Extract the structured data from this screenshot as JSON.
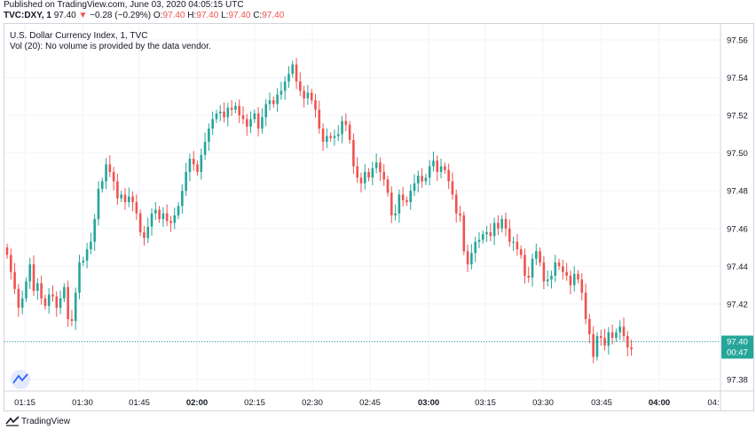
{
  "header": {
    "published": "Published on TradingView.com, June 03, 2020 04:05:15 UTC",
    "symbol": "TVC:DXY, 1",
    "last": "97.40",
    "change": "−0.28 (−0.29%)",
    "o_label": "O:",
    "o_value": "97.40",
    "h_label": "H:",
    "h_value": "97.40",
    "l_label": "L:",
    "l_value": "97.40",
    "c_label": "C:",
    "c_value": "97.40"
  },
  "legend": {
    "title": "U.S. Dollar Currency Index, 1, TVC",
    "volume": "Vol (20): No volume is provided by the data vendor."
  },
  "footer": {
    "brand": "TradingView"
  },
  "colors": {
    "up": "#26a69a",
    "down": "#ef5350",
    "grid": "#f0f3fa",
    "axis_text": "#131722",
    "price_label_bg": "#26a69a",
    "logo": "#2962ff"
  },
  "chart_data": {
    "type": "candlestick",
    "title": "U.S. Dollar Currency Index, 1, TVC",
    "ylim": [
      97.368,
      97.577
    ],
    "y_ticks": [
      "97.56",
      "97.54",
      "97.52",
      "97.50",
      "97.48",
      "97.46",
      "97.44",
      "97.42",
      "97.40",
      "97.38"
    ],
    "x_ticks": [
      "01:15",
      "01:30",
      "01:45",
      "02:00",
      "02:15",
      "02:30",
      "02:45",
      "03:00",
      "03:15",
      "03:30",
      "03:45",
      "04:00",
      "04:"
    ],
    "bold_x_ticks": [
      "02:00",
      "03:00",
      "04:00"
    ],
    "start_index_time": "01:14",
    "current_price": "97.40",
    "countdown": "00:47",
    "closes": [
      97.446,
      97.437,
      97.428,
      97.418,
      97.423,
      97.432,
      97.441,
      97.427,
      97.431,
      97.423,
      97.419,
      97.425,
      97.424,
      97.418,
      97.423,
      97.429,
      97.412,
      97.411,
      97.426,
      97.442,
      97.443,
      97.449,
      97.453,
      97.465,
      97.481,
      97.485,
      97.494,
      97.49,
      97.485,
      97.476,
      97.478,
      97.474,
      97.477,
      97.474,
      97.468,
      97.458,
      97.455,
      97.461,
      97.468,
      97.47,
      97.465,
      97.468,
      97.464,
      97.463,
      97.467,
      97.472,
      97.48,
      97.49,
      97.497,
      97.494,
      97.49,
      97.499,
      97.506,
      97.513,
      97.518,
      97.521,
      97.522,
      97.519,
      97.524,
      97.523,
      97.525,
      97.52,
      97.518,
      97.514,
      97.518,
      97.521,
      97.513,
      97.519,
      97.526,
      97.528,
      97.526,
      97.531,
      97.533,
      97.538,
      97.542,
      97.547,
      97.538,
      97.533,
      97.529,
      97.532,
      97.528,
      97.523,
      97.513,
      97.506,
      97.509,
      97.508,
      97.509,
      97.51,
      97.517,
      97.515,
      97.507,
      97.493,
      97.487,
      97.484,
      97.49,
      97.487,
      97.492,
      97.495,
      97.49,
      97.486,
      97.479,
      97.467,
      97.468,
      97.478,
      97.475,
      97.474,
      97.48,
      97.484,
      97.488,
      97.485,
      97.487,
      97.493,
      97.496,
      97.49,
      97.493,
      97.491,
      97.485,
      97.478,
      97.468,
      97.467,
      97.448,
      97.441,
      97.447,
      97.453,
      97.454,
      97.457,
      97.458,
      97.456,
      97.463,
      97.46,
      97.465,
      97.46,
      97.453,
      97.453,
      97.449,
      97.446,
      97.435,
      97.434,
      97.444,
      97.448,
      97.442,
      97.432,
      97.433,
      97.435,
      97.442,
      97.44,
      97.437,
      97.435,
      97.43,
      97.436,
      97.433,
      97.426,
      97.412,
      97.404,
      97.392,
      97.403,
      97.402,
      97.398,
      97.405,
      97.402,
      97.405,
      97.408,
      97.403,
      97.397,
      97.396
    ]
  }
}
